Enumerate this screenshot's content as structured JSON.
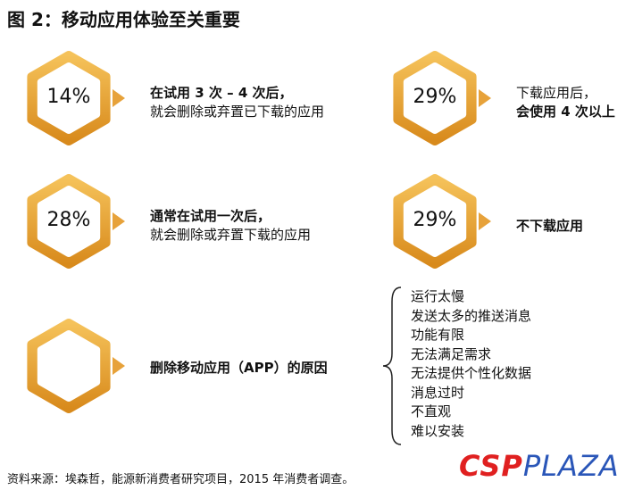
{
  "title": "图 2：移动应用体验至关重要",
  "items": [
    {
      "value": "14%",
      "lines": [
        "在试用 3 次 – 4 次后，",
        "就会删除或弃置已下载的应用"
      ]
    },
    {
      "value": "29%",
      "lines": [
        "下载应用后，",
        "会使用 4 次以上"
      ]
    },
    {
      "value": "28%",
      "lines": [
        "通常在试用一次后，",
        "就会删除或弃置下载的应用"
      ]
    },
    {
      "value": "29%",
      "lines": [
        "不下载应用"
      ]
    }
  ],
  "reasons": {
    "label": "删除移动应用（APP）的原因",
    "list": [
      "运行太慢",
      "发送太多的推送消息",
      "功能有限",
      "无法满足需求",
      "无法提供个性化数据",
      "消息过时",
      "不直观",
      "难以安装"
    ]
  },
  "source": "资料来源：埃森哲，能源新消费者研究项目，2015 年消费者调查。",
  "logo": {
    "part1": "CSP",
    "part2": "PLAZA"
  }
}
